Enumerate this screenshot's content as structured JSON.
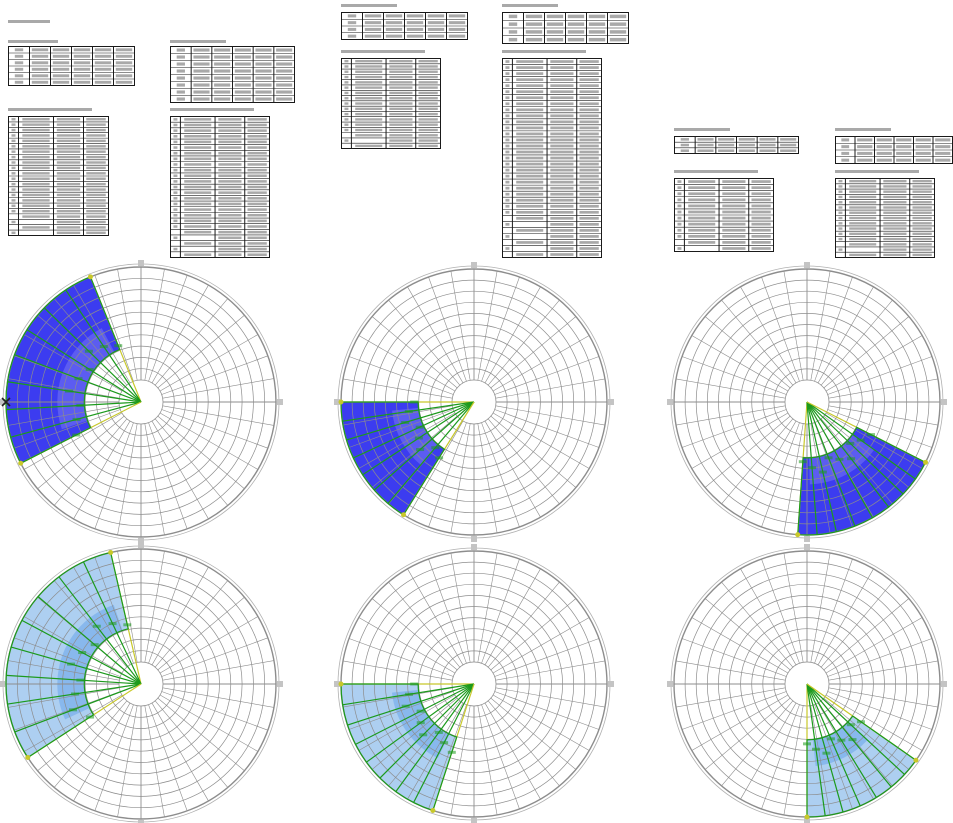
{
  "colors": {
    "fill_dark": "#2b2bef",
    "fill_dark_inner": "#7777f2",
    "fill_light": "#9fc7ef",
    "fill_light_inner": "#6aa6ea",
    "grid": "#8d8d8d",
    "ring_major": "#b0b0b0",
    "ray_green": "#1c9a1c",
    "ray_yellow": "#c8c82a",
    "text_bar": "#a9a9a9",
    "table_border": "#1a1a1a"
  },
  "tables": [
    {
      "cols": 6,
      "rows": 6
    },
    {
      "cols": 6,
      "rows": 8
    },
    {
      "cols": 6,
      "rows": 4
    },
    {
      "cols": 6,
      "rows": 4
    },
    {
      "cols": 6,
      "rows": 3
    },
    {
      "cols": 6,
      "rows": 4
    },
    {
      "cols": 4,
      "rows": 22
    },
    {
      "cols": 4,
      "rows": 25
    },
    {
      "cols": 4,
      "rows": 17
    },
    {
      "cols": 4,
      "rows": 33
    },
    {
      "cols": 4,
      "rows": 12
    },
    {
      "cols": 4,
      "rows": 15
    }
  ],
  "diagrams": [
    {
      "mark": "cross",
      "style": "dark",
      "sector": {
        "from": 112,
        "to": 207
      },
      "rays": 9
    },
    {
      "mark": "",
      "style": "dark",
      "sector": {
        "from": 180,
        "to": 238
      },
      "rays": 8
    },
    {
      "mark": "",
      "style": "dark",
      "sector": {
        "from": 266,
        "to": 333
      },
      "rays": 9
    },
    {
      "mark": "",
      "style": "light",
      "sector": {
        "from": 103,
        "to": 213
      },
      "rays": 10
    },
    {
      "mark": "",
      "style": "light",
      "sector": {
        "from": 180,
        "to": 252
      },
      "rays": 9
    },
    {
      "mark": "",
      "style": "light",
      "sector": {
        "from": 270,
        "to": 325
      },
      "rays": 8
    }
  ]
}
